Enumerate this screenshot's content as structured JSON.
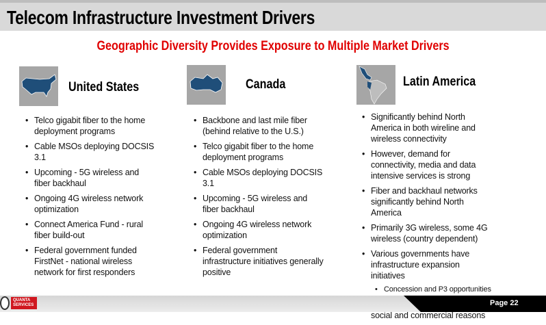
{
  "title": "Telecom Infrastructure Investment Drivers",
  "subtitle": "Geographic Diversity Provides Exposure to Multiple Market Drivers",
  "columns": [
    {
      "heading": "United States",
      "icon": "us-map-icon",
      "bullets": [
        "Telco gigabit fiber to the home deployment programs",
        "Cable MSOs deploying DOCSIS 3.1",
        "Upcoming - 5G wireless and fiber backhaul",
        "Ongoing 4G wireless network optimization",
        "Connect America Fund - rural fiber build-out",
        "Federal government funded FirstNet - national wireless network for first responders"
      ]
    },
    {
      "heading": "Canada",
      "icon": "canada-map-icon",
      "bullets": [
        "Backbone and last mile fiber (behind relative to the U.S.)",
        "Telco gigabit fiber to the home deployment programs",
        "Cable MSOs deploying DOCSIS 3.1",
        "Upcoming - 5G wireless and fiber backhaul",
        "Ongoing 4G wireless network optimization",
        "Federal government infrastructure initiatives generally positive"
      ]
    },
    {
      "heading": "Latin America",
      "icon": "latin-america-map-icon",
      "bullets": [
        "Significantly behind North America in both wireline and wireless connectivity",
        "However, demand for connectivity, media and data intensive services is strong",
        "Fiber and backhaul networks significantly behind North America",
        "Primarily 3G wireless, some 4G wireless (country dependent)",
        "Various governments have infrastructure expansion initiatives",
        "Connectivity for quality of life, social and commercial reasons"
      ],
      "sub_bullet": "Concession and P3 opportunities"
    }
  ],
  "footer": {
    "logo_text": "QUANTA SERVICES",
    "page": "Page 22"
  },
  "colors": {
    "title_bar": "#d9d9d9",
    "subtitle": "#e00000",
    "map_fill": "#1f4e79",
    "accent": "#d01820"
  }
}
